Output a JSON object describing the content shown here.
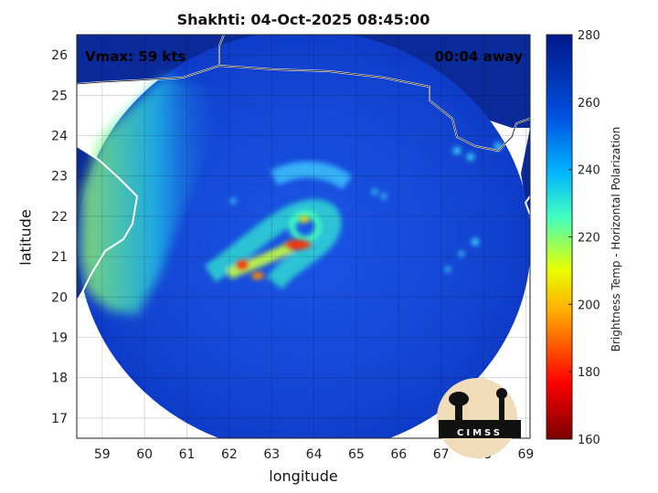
{
  "title": "Shakhti: 04-Oct-2025 08:45:00",
  "vmax_label": "Vmax: 59 kts",
  "time_away": "00:04 away",
  "xlabel": "longitude",
  "ylabel": "latitude",
  "colorbar_label": "Brightness Temp - Horizontal Polarization",
  "logo_text": "CIMSS",
  "x_ticks": [
    "59",
    "60",
    "61",
    "62",
    "63",
    "64",
    "65",
    "66",
    "67",
    "68",
    "69"
  ],
  "y_ticks": [
    "17",
    "18",
    "19",
    "20",
    "21",
    "22",
    "23",
    "24",
    "25",
    "26"
  ],
  "colorbar_ticks": [
    "160",
    "180",
    "200",
    "220",
    "240",
    "260",
    "280"
  ],
  "map_extent": {
    "lon": [
      58.4,
      69.1
    ],
    "lat": [
      16.5,
      26.5
    ]
  },
  "colorbar_range": [
    160,
    280
  ],
  "colorbar_colors": [
    "#7a0000",
    "#ff0000",
    "#ffb000",
    "#e8ff00",
    "#40ffc0",
    "#00b4ff",
    "#0050e0",
    "#00188a"
  ],
  "colors": {
    "ocean_base": "#1246d8",
    "land": "#0a2a9a",
    "coast": "#ffffff"
  },
  "storm_center": {
    "lon": 63.7,
    "lat": 21.5
  }
}
